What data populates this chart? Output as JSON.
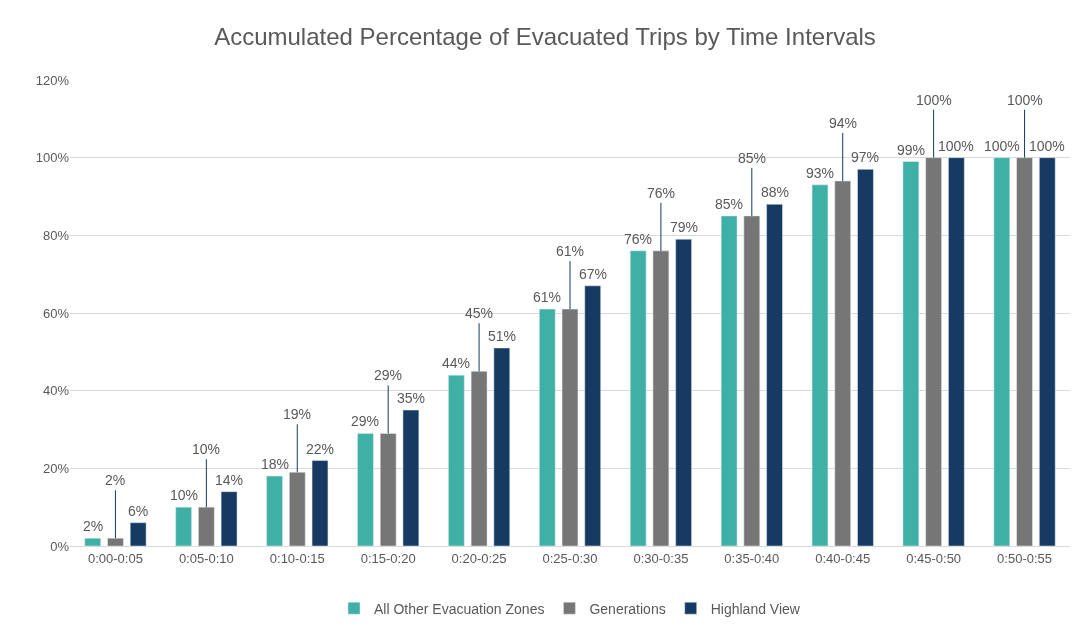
{
  "chart_data": {
    "type": "bar",
    "title": "Accumulated Percentage of Evacuated Trips by Time Intervals",
    "categories": [
      "0:00-0:05",
      "0:05-0:10",
      "0:10-0:15",
      "0:15-0:20",
      "0:20-0:25",
      "0:25-0:30",
      "0:30-0:35",
      "0:35-0:40",
      "0:40-0:45",
      "0:45-0:50",
      "0:50-0:55"
    ],
    "series": [
      {
        "name": "All Other Evacuation Zones",
        "color": "#3fb0a6",
        "values": [
          2,
          10,
          18,
          29,
          44,
          61,
          76,
          85,
          93,
          99,
          100
        ],
        "value_labels": [
          "2%",
          "10%",
          "18%",
          "29%",
          "44%",
          "61%",
          "76%",
          "85%",
          "93%",
          "99%",
          "100%"
        ]
      },
      {
        "name": "Generations",
        "color": "#767676",
        "values": [
          2,
          10,
          19,
          29,
          45,
          61,
          76,
          85,
          94,
          100,
          100
        ],
        "value_labels": [
          "2%",
          "10%",
          "19%",
          "29%",
          "45%",
          "61%",
          "76%",
          "85%",
          "94%",
          "100%",
          "100%"
        ]
      },
      {
        "name": "Highland View",
        "color": "#173a63",
        "values": [
          6,
          14,
          22,
          35,
          51,
          67,
          79,
          88,
          97,
          100,
          100
        ],
        "value_labels": [
          "6%",
          "14%",
          "22%",
          "35%",
          "51%",
          "67%",
          "79%",
          "88%",
          "97%",
          "100%",
          "100%"
        ]
      }
    ],
    "ylim": [
      0,
      120
    ],
    "yticks": [
      {
        "value": 0,
        "label": "0%"
      },
      {
        "value": 20,
        "label": "20%"
      },
      {
        "value": 40,
        "label": "40%"
      },
      {
        "value": 60,
        "label": "60%"
      },
      {
        "value": 80,
        "label": "80%"
      },
      {
        "value": 100,
        "label": "100%"
      },
      {
        "value": 120,
        "label": "120%"
      }
    ],
    "grid": "y",
    "legend": "bottom"
  }
}
